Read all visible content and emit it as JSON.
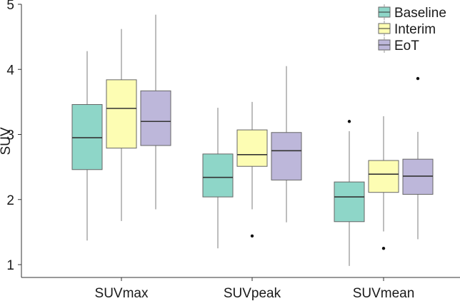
{
  "chart_data": {
    "type": "boxplot",
    "title": "",
    "xlabel": "",
    "ylabel": "SUV",
    "ylim": [
      0.8,
      5.0
    ],
    "yticks": [
      1,
      2,
      3,
      4,
      5
    ],
    "grid": false,
    "legend_position": "top-right",
    "categories": [
      "SUVmax",
      "SUVpeak",
      "SUVmean"
    ],
    "series": [
      {
        "name": "Baseline",
        "color": "#8ed6c8",
        "boxes": [
          {
            "whisker_low": 1.37,
            "q1": 2.46,
            "median": 2.95,
            "q3": 3.46,
            "whisker_high": 4.28,
            "outliers": []
          },
          {
            "whisker_low": 1.25,
            "q1": 2.04,
            "median": 2.34,
            "q3": 2.7,
            "whisker_high": 3.41,
            "outliers": []
          },
          {
            "whisker_low": 0.98,
            "q1": 1.66,
            "median": 2.04,
            "q3": 2.27,
            "whisker_high": 3.05,
            "outliers": [
              3.2
            ]
          }
        ]
      },
      {
        "name": "Interim",
        "color": "#fdfdb3",
        "boxes": [
          {
            "whisker_low": 1.67,
            "q1": 2.79,
            "median": 3.4,
            "q3": 3.84,
            "whisker_high": 4.62,
            "outliers": []
          },
          {
            "whisker_low": 1.85,
            "q1": 2.51,
            "median": 2.69,
            "q3": 3.07,
            "whisker_high": 3.5,
            "outliers": [
              1.44
            ]
          },
          {
            "whisker_low": 1.51,
            "q1": 2.11,
            "median": 2.39,
            "q3": 2.6,
            "whisker_high": 3.28,
            "outliers": [
              1.25
            ]
          }
        ]
      },
      {
        "name": "EoT",
        "color": "#bdb7da",
        "boxes": [
          {
            "whisker_low": 1.85,
            "q1": 2.83,
            "median": 3.2,
            "q3": 3.67,
            "whisker_high": 4.84,
            "outliers": []
          },
          {
            "whisker_low": 1.65,
            "q1": 2.3,
            "median": 2.75,
            "q3": 3.03,
            "whisker_high": 4.05,
            "outliers": []
          },
          {
            "whisker_low": 1.39,
            "q1": 2.08,
            "median": 2.36,
            "q3": 2.62,
            "whisker_high": 3.04,
            "outliers": [
              3.86
            ]
          }
        ]
      }
    ],
    "style": {
      "box_stroke": "#666666",
      "median_stroke": "#333333",
      "whisker_stroke": "#999999",
      "outlier_fill": "#111111",
      "axis_stroke": "#333333"
    }
  }
}
